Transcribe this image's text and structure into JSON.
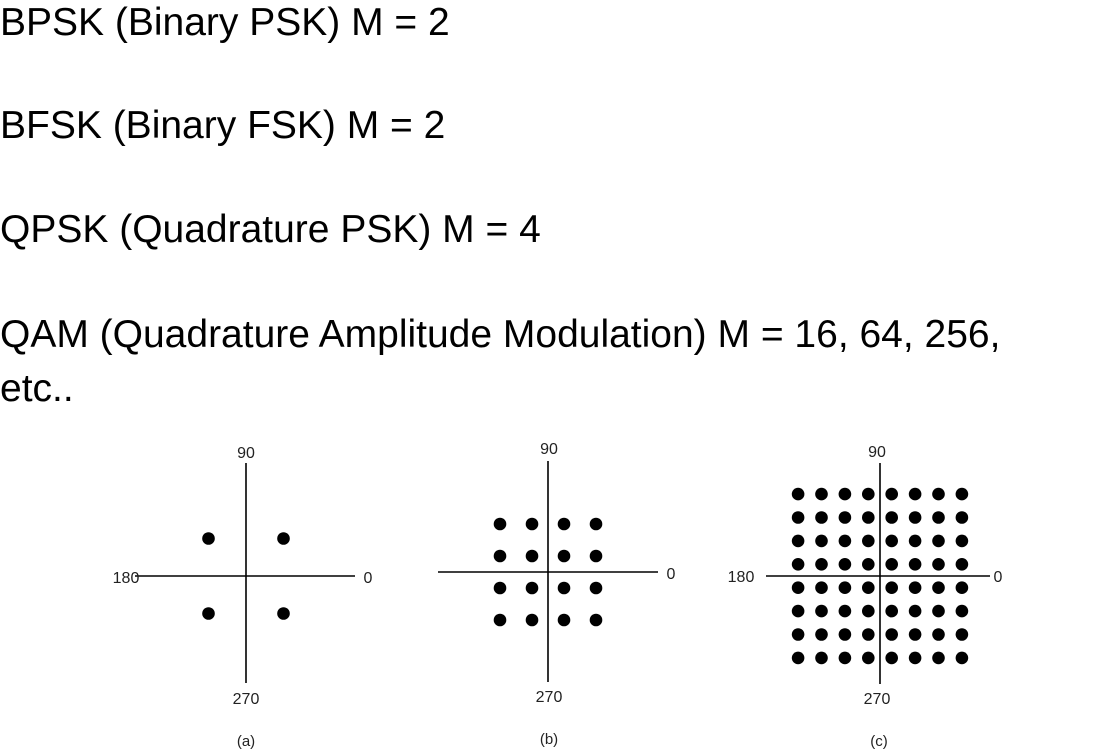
{
  "text_lines": [
    "BPSK (Binary PSK) M = 2",
    "BFSK (Binary FSK) M = 2",
    "QPSK (Quadrature PSK) M = 4",
    "QAM (Quadrature Amplitude Modulation) M = 16, 64, 256,",
    "etc.."
  ],
  "constellations": [
    {
      "caption": "(a)",
      "label_top": "90",
      "label_left": "180",
      "label_right": "0",
      "label_bottom": "270",
      "grid_size": 2
    },
    {
      "caption": "(b)",
      "label_top": "90",
      "label_left": "",
      "label_right": "0",
      "label_bottom": "270",
      "grid_size": 4
    },
    {
      "caption": "(c)",
      "label_top": "90",
      "label_left": "180",
      "label_right": "0",
      "label_bottom": "270",
      "grid_size": 8
    }
  ],
  "colors": {
    "text": "#000000",
    "axis": "#000000",
    "dot": "#000000"
  }
}
